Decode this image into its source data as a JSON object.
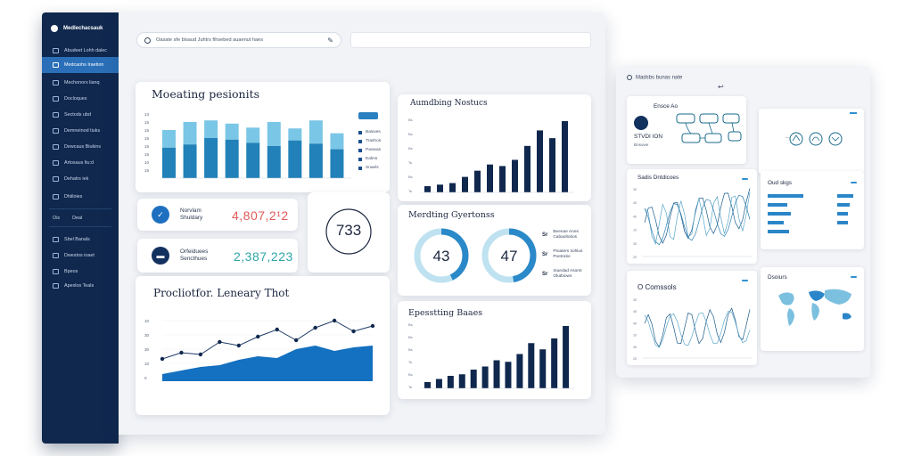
{
  "sidebar": {
    "brand": "Medlechacsauk",
    "items": [
      {
        "label": "Abudeet Lohh dalec",
        "active": false
      },
      {
        "label": "Medcaohs Iraetion",
        "active": true
      },
      {
        "label": "Mechonors lianq",
        "active": false
      },
      {
        "label": "Docloques",
        "active": false
      },
      {
        "label": "Sectods ubd",
        "active": false
      },
      {
        "label": "Demneinod tiuks",
        "active": false
      },
      {
        "label": "Dewcaus Biukins",
        "active": false
      },
      {
        "label": "Artosaus ltu:d",
        "active": false
      },
      {
        "label": "Dehatrs iek",
        "active": false
      },
      {
        "label": "Dhiiloies",
        "active": false
      }
    ],
    "section": [
      "Ois",
      "Deal"
    ],
    "items2": [
      {
        "label": "Sbel Banals"
      },
      {
        "label": "Dwestos ioaet"
      },
      {
        "label": "Bpeos"
      },
      {
        "label": "Apexlos Teals"
      }
    ]
  },
  "search": {
    "text": "Oasate sfe bisaud Juhtrs fihsebed auaenut haes"
  },
  "cards": {
    "meeting": {
      "title": "Moeating pesionits",
      "badge": "",
      "legend": [
        "Baswes",
        "Trashos",
        "Paowas",
        "Ealms",
        "Snaels"
      ]
    },
    "auditing": {
      "title": "Aumdbing Nostucs"
    },
    "kpi1": {
      "label_line1": "Norvlam",
      "label_line2": "Shuldary",
      "value": "4,807,2¹2"
    },
    "kpi2": {
      "label_line1": "Orfeiduees",
      "label_line2": "Sencthues",
      "value": "2,387,223"
    },
    "big_number": {
      "value": "733"
    },
    "meeting_gyr": {
      "title": "Merdting Gyertonss",
      "donut1": "43",
      "donut2": "47",
      "legend": [
        {
          "key": "Sr",
          "l1": "Beenae Anes",
          "l2": "Cabaoltotios"
        },
        {
          "key": "Sr",
          "l1": "Ptoaters Iiohlus",
          "l2": "Poetratio"
        },
        {
          "key": "Sr",
          "l1": "Siuedad Asomt",
          "l2": "Olutbiows"
        }
      ]
    },
    "proc": {
      "title": "Procliotfor. Leneary Thot"
    },
    "eposs": {
      "title": "Epesstting Baaes"
    }
  },
  "panel2": {
    "top_text": "Madsbs bunas nate",
    "ensc": {
      "title": "Ensce Ao",
      "sub1": "STVDI ION",
      "sub2": "Bnsuwe"
    },
    "sods": {
      "title": "Sadis Dntdicoes"
    },
    "oud": {
      "title": "Oud skgs"
    },
    "comssols": {
      "title": "O Comssols"
    },
    "map": {
      "title": "Dsoiurs"
    }
  },
  "chart_data": [
    {
      "type": "bar",
      "title": "Moeating pesionits",
      "series": [
        {
          "name": "",
          "values": [
            38,
            42,
            50,
            48,
            44,
            40,
            47,
            43,
            36
          ]
        },
        {
          "name": "",
          "values": [
            60,
            70,
            72,
            68,
            63,
            70,
            62,
            72,
            56
          ]
        }
      ],
      "ylabel_ticks": [
        "13",
        "15",
        "15",
        "15",
        "15",
        "15",
        "10",
        "15"
      ]
    },
    {
      "type": "bar",
      "title": "Aumdbing Nostucs",
      "values": [
        8,
        10,
        12,
        20,
        28,
        36,
        34,
        42,
        60,
        80,
        70,
        92
      ]
    },
    {
      "type": "area",
      "title": "Procliotfor. Leneary Thot",
      "line": [
        25,
        32,
        30,
        44,
        40,
        50,
        58,
        46,
        60,
        68,
        56,
        62
      ],
      "area": [
        8,
        12,
        16,
        18,
        24,
        28,
        26,
        36,
        40,
        34,
        38,
        40
      ]
    },
    {
      "type": "bar",
      "title": "Epesstting Baaes",
      "values": [
        8,
        12,
        16,
        18,
        24,
        28,
        36,
        34,
        44,
        58,
        50,
        64,
        80
      ]
    }
  ]
}
